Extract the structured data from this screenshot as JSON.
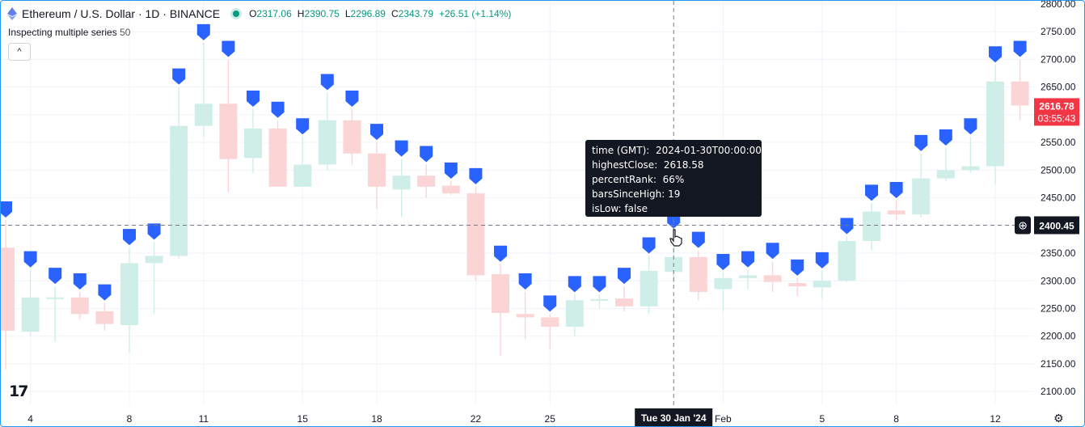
{
  "header": {
    "title": "Ethereum / U.S. Dollar · 1D · BINANCE",
    "ohlc": {
      "o_label": "O",
      "o": "2317.06",
      "h_label": "H",
      "h": "2390.75",
      "l_label": "L",
      "l": "2296.89",
      "c_label": "C",
      "c": "2343.79",
      "change": "+26.51 (+1.14%)"
    }
  },
  "indicator": {
    "name": "Inspecting multiple series",
    "value": "50"
  },
  "collapse_label": "^",
  "tooltip": {
    "rows": [
      {
        "key": "time (GMT):",
        "value": "2024-01-30T00:00:00"
      },
      {
        "key": "highestClose:",
        "value": "2618.58"
      },
      {
        "key": "percentRank:",
        "value": "66%"
      },
      {
        "key": "barsSinceHigh:",
        "value": "19"
      },
      {
        "key": "isLow:",
        "value": "false"
      }
    ]
  },
  "price_badge": {
    "price": "2616.78",
    "countdown": "03:55:43"
  },
  "crosshair": {
    "price": "2400.45",
    "date": "Tue 30 Jan '24"
  },
  "logo_text": "17",
  "colors": {
    "up": "#cfeee8",
    "down": "#fbd4d6",
    "marker": "#2962ff",
    "badge": "#f23645",
    "tooltip_bg": "#131722"
  },
  "chart_data": {
    "type": "candlestick",
    "title": "Ethereum / U.S. Dollar · 1D · BINANCE",
    "ylim": [
      2090,
      2800
    ],
    "y_ticks": [
      2100,
      2150,
      2200,
      2250,
      2300,
      2350,
      2400,
      2450,
      2500,
      2550,
      2600,
      2650,
      2700,
      2750,
      2800
    ],
    "x_tick_labels": [
      {
        "bar": 1,
        "label": "4"
      },
      {
        "bar": 5,
        "label": "8"
      },
      {
        "bar": 8,
        "label": "11"
      },
      {
        "bar": 12,
        "label": "15"
      },
      {
        "bar": 15,
        "label": "18"
      },
      {
        "bar": 19,
        "label": "22"
      },
      {
        "bar": 22,
        "label": "25"
      },
      {
        "bar": 29,
        "label": "Feb"
      },
      {
        "bar": 33,
        "label": "5"
      },
      {
        "bar": 36,
        "label": "8"
      },
      {
        "bar": 40,
        "label": "12"
      }
    ],
    "crosshair_bar": 27,
    "crosshair_price": 2400.45,
    "candles": [
      {
        "o": 2360,
        "h": 2410,
        "l": 2140,
        "c": 2210
      },
      {
        "o": 2208,
        "h": 2320,
        "l": 2200,
        "c": 2270
      },
      {
        "o": 2270,
        "h": 2290,
        "l": 2190,
        "c": 2270
      },
      {
        "o": 2270,
        "h": 2280,
        "l": 2230,
        "c": 2240
      },
      {
        "o": 2245,
        "h": 2260,
        "l": 2210,
        "c": 2222
      },
      {
        "o": 2220,
        "h": 2360,
        "l": 2170,
        "c": 2332
      },
      {
        "o": 2332,
        "h": 2370,
        "l": 2240,
        "c": 2345
      },
      {
        "o": 2345,
        "h": 2650,
        "l": 2340,
        "c": 2580
      },
      {
        "o": 2580,
        "h": 2730,
        "l": 2560,
        "c": 2620
      },
      {
        "o": 2620,
        "h": 2700,
        "l": 2460,
        "c": 2520
      },
      {
        "o": 2522,
        "h": 2610,
        "l": 2495,
        "c": 2575
      },
      {
        "o": 2575,
        "h": 2590,
        "l": 2470,
        "c": 2470
      },
      {
        "o": 2470,
        "h": 2560,
        "l": 2470,
        "c": 2510
      },
      {
        "o": 2510,
        "h": 2640,
        "l": 2500,
        "c": 2590
      },
      {
        "o": 2590,
        "h": 2610,
        "l": 2510,
        "c": 2530
      },
      {
        "o": 2530,
        "h": 2550,
        "l": 2430,
        "c": 2470
      },
      {
        "o": 2465,
        "h": 2520,
        "l": 2415,
        "c": 2490
      },
      {
        "o": 2490,
        "h": 2510,
        "l": 2450,
        "c": 2470
      },
      {
        "o": 2472,
        "h": 2480,
        "l": 2455,
        "c": 2458
      },
      {
        "o": 2458,
        "h": 2470,
        "l": 2300,
        "c": 2310
      },
      {
        "o": 2312,
        "h": 2330,
        "l": 2165,
        "c": 2242
      },
      {
        "o": 2240,
        "h": 2280,
        "l": 2195,
        "c": 2234
      },
      {
        "o": 2234,
        "h": 2240,
        "l": 2175,
        "c": 2217
      },
      {
        "o": 2217,
        "h": 2275,
        "l": 2200,
        "c": 2265
      },
      {
        "o": 2265,
        "h": 2275,
        "l": 2250,
        "c": 2267
      },
      {
        "o": 2268,
        "h": 2290,
        "l": 2245,
        "c": 2254
      },
      {
        "o": 2254,
        "h": 2345,
        "l": 2240,
        "c": 2318
      },
      {
        "o": 2316,
        "h": 2390,
        "l": 2295,
        "c": 2343
      },
      {
        "o": 2343,
        "h": 2355,
        "l": 2265,
        "c": 2280
      },
      {
        "o": 2285,
        "h": 2315,
        "l": 2245,
        "c": 2305
      },
      {
        "o": 2305,
        "h": 2320,
        "l": 2285,
        "c": 2310
      },
      {
        "o": 2310,
        "h": 2335,
        "l": 2280,
        "c": 2298
      },
      {
        "o": 2296,
        "h": 2305,
        "l": 2272,
        "c": 2290
      },
      {
        "o": 2288,
        "h": 2318,
        "l": 2268,
        "c": 2300
      },
      {
        "o": 2300,
        "h": 2380,
        "l": 2298,
        "c": 2372
      },
      {
        "o": 2372,
        "h": 2440,
        "l": 2355,
        "c": 2425
      },
      {
        "o": 2427,
        "h": 2445,
        "l": 2410,
        "c": 2420
      },
      {
        "o": 2420,
        "h": 2530,
        "l": 2415,
        "c": 2485
      },
      {
        "o": 2485,
        "h": 2540,
        "l": 2480,
        "c": 2500
      },
      {
        "o": 2500,
        "h": 2560,
        "l": 2495,
        "c": 2507
      },
      {
        "o": 2507,
        "h": 2690,
        "l": 2475,
        "c": 2660
      },
      {
        "o": 2660,
        "h": 2700,
        "l": 2590,
        "c": 2616.78
      }
    ]
  }
}
